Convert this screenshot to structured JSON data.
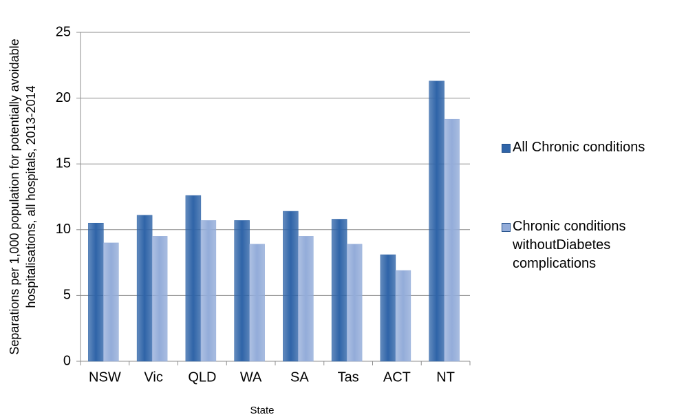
{
  "chart_data": {
    "type": "bar",
    "xlabel": "State",
    "ylabel": [
      "Separations per 1,000 population for potentially avoidable",
      "hospitalisations, all hospitals, 2013-2014"
    ],
    "categories": [
      "NSW",
      "Vic",
      "QLD",
      "WA",
      "SA",
      "Tas",
      "ACT",
      "NT"
    ],
    "series": [
      {
        "name": "All Chronic conditions",
        "color": "#2f64a8",
        "values": [
          10.5,
          11.1,
          12.6,
          10.7,
          11.4,
          10.8,
          8.1,
          21.3
        ]
      },
      {
        "name": "Chronic conditions withoutDiabetes complications",
        "color": "#93acd9",
        "values": [
          9.0,
          9.5,
          10.7,
          8.9,
          9.5,
          8.9,
          6.9,
          18.4
        ]
      }
    ],
    "ylim": [
      0,
      25
    ],
    "yticks": [
      0,
      5,
      10,
      15,
      20,
      25
    ],
    "grid": true,
    "legend": "right"
  }
}
